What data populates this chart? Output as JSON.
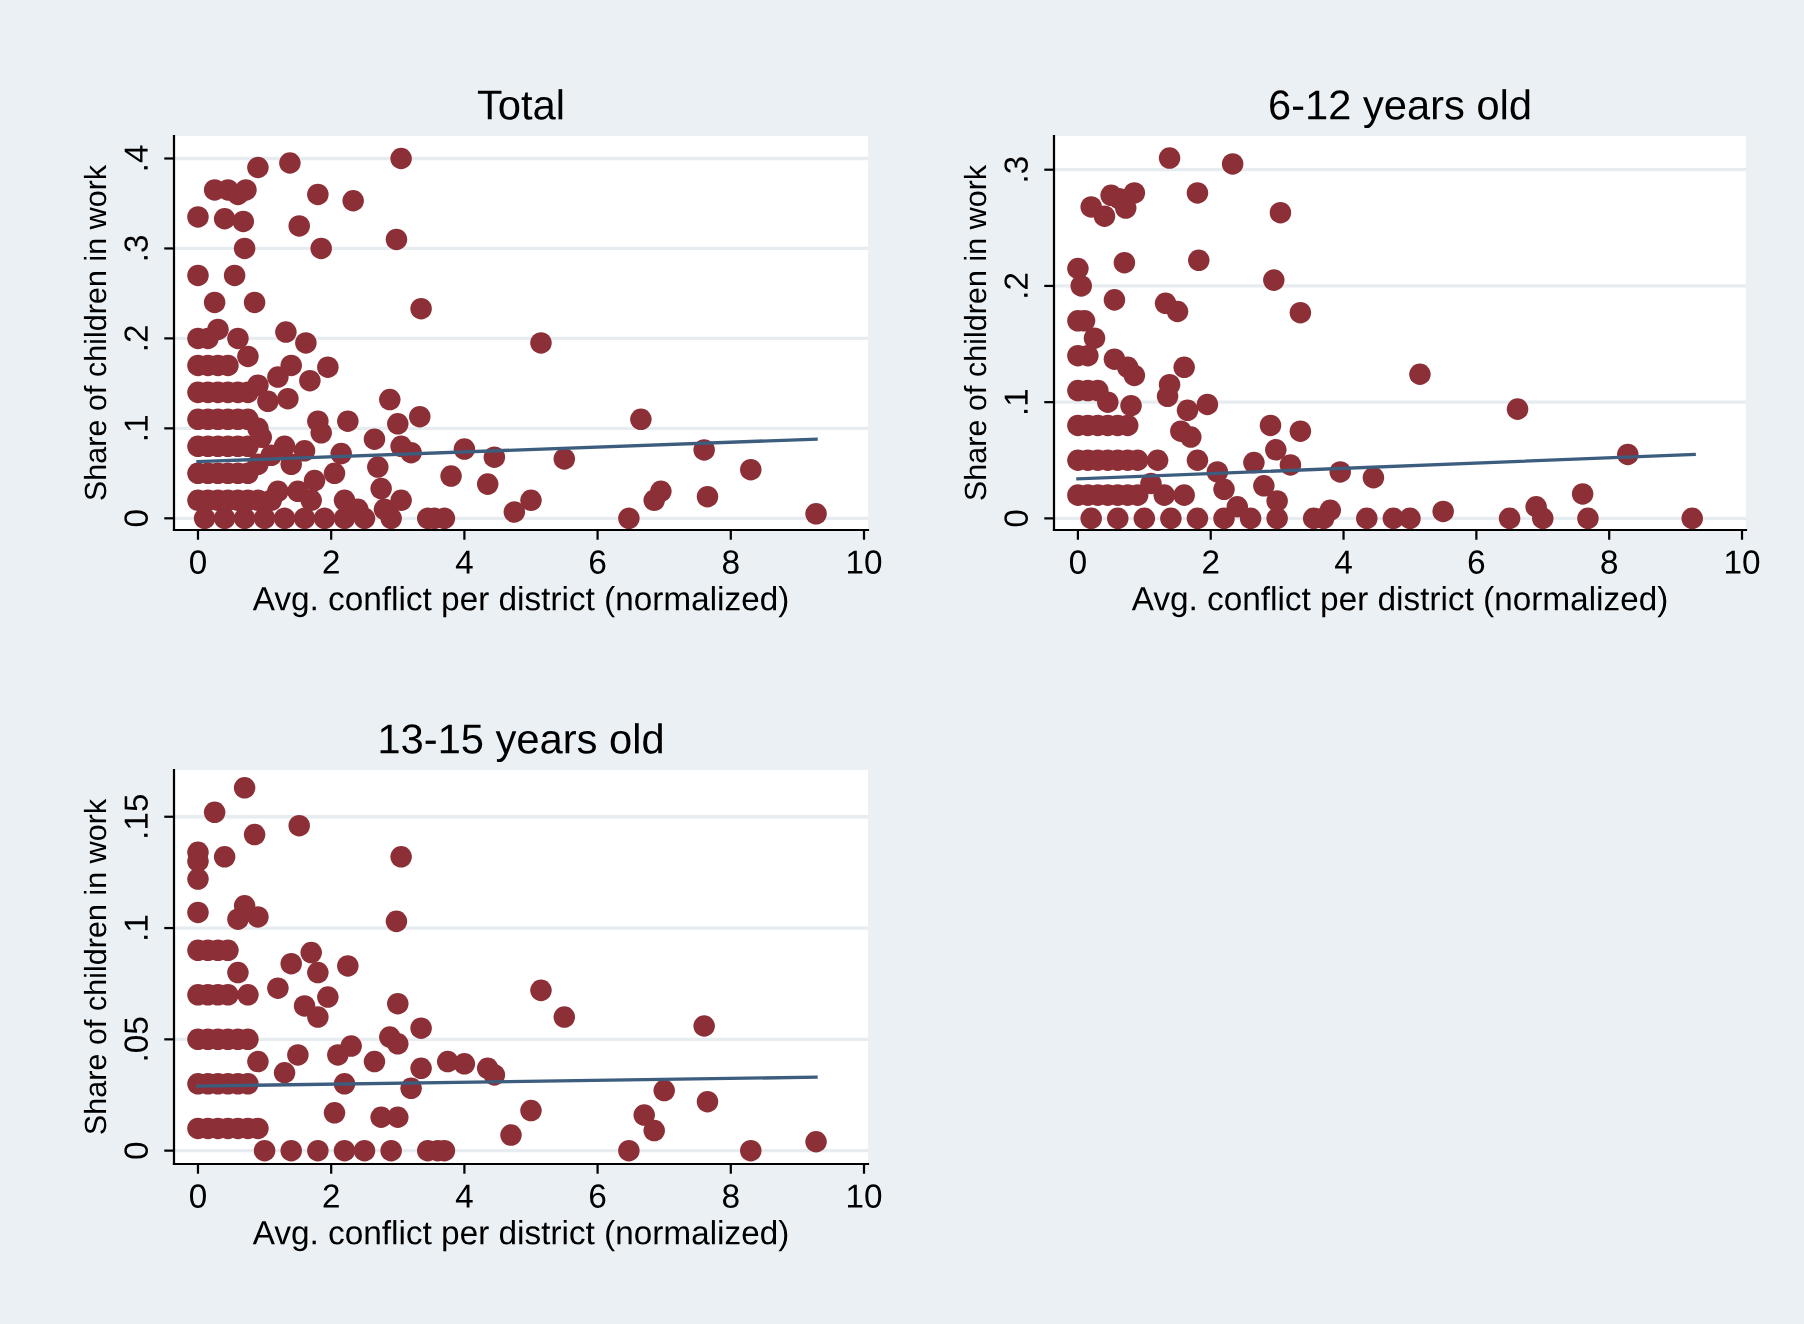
{
  "chart_data": [
    {
      "type": "scatter",
      "title": "Total",
      "xlabel": "Avg. conflict per district (normalized)",
      "ylabel": "Share of children in work",
      "xlim": [
        -0.36,
        10.06
      ],
      "ylim": [
        -0.013,
        0.425
      ],
      "xticks": [
        0,
        2,
        4,
        6,
        8,
        10
      ],
      "yticks": [
        {
          "value": 0,
          "label": "0"
        },
        {
          "value": 0.1,
          "label": ".1"
        },
        {
          "value": 0.2,
          "label": ".2"
        },
        {
          "value": 0.3,
          "label": ".3"
        },
        {
          "value": 0.4,
          "label": ".4"
        }
      ],
      "grid": "y",
      "marker": "circle",
      "series": [
        {
          "color": "#8c2f36",
          "x": [
            0,
            0.25,
            0.45,
            0.6,
            0.72,
            0.4,
            0.68,
            0.9,
            1.38,
            3.05,
            1.8,
            2.33,
            1.52,
            2.98,
            0.7,
            1.85,
            0,
            0.55,
            0.25,
            0.85,
            3.35,
            5.15,
            1.32,
            1.62,
            1.4,
            1.95,
            1.2,
            1.68,
            0.9,
            1.05,
            1.35,
            2.88,
            3.33,
            2.25,
            3.0,
            6.65,
            1.8,
            1.85,
            2.65,
            3.05,
            3.2,
            2.15,
            4.0,
            4.45,
            5.5,
            7.6,
            8.3,
            2.05,
            2.7,
            3.8,
            4.35,
            1.75,
            2.75,
            3.05,
            2.2,
            5.0,
            4.75,
            6.95,
            6.85,
            7.65,
            9.28,
            6.47,
            3.45,
            3.7,
            3.55,
            2.9,
            2.5,
            2.2,
            1.9,
            1.6,
            1.3,
            1.0,
            0.7,
            0.4,
            0.1,
            1.2,
            1.4,
            1.6,
            1.3,
            0.95,
            0,
            0,
            0,
            0,
            0,
            0,
            0,
            0.15,
            0.15,
            0.15,
            0.15,
            0.15,
            0.15,
            0.15,
            0.3,
            0.3,
            0.3,
            0.3,
            0.3,
            0.3,
            0.3,
            0.45,
            0.45,
            0.45,
            0.45,
            0.45,
            0.45,
            0.6,
            0.6,
            0.6,
            0.6,
            0.6,
            0.6,
            0.75,
            0.75,
            0.75,
            0.75,
            0.75,
            0.75,
            0.9,
            0.9,
            0.9,
            1.1,
            1.1,
            1.5,
            1.7,
            2.4,
            2.8
          ],
          "values": [
            0.335,
            0.365,
            0.365,
            0.36,
            0.365,
            0.333,
            0.33,
            0.39,
            0.395,
            0.4,
            0.36,
            0.353,
            0.325,
            0.31,
            0.3,
            0.3,
            0.27,
            0.27,
            0.24,
            0.24,
            0.233,
            0.195,
            0.207,
            0.195,
            0.17,
            0.168,
            0.157,
            0.153,
            0.148,
            0.13,
            0.133,
            0.132,
            0.113,
            0.108,
            0.105,
            0.11,
            0.108,
            0.095,
            0.088,
            0.08,
            0.073,
            0.072,
            0.077,
            0.068,
            0.066,
            0.076,
            0.054,
            0.05,
            0.057,
            0.047,
            0.038,
            0.042,
            0.033,
            0.02,
            0.02,
            0.02,
            0.007,
            0.03,
            0.02,
            0.024,
            0.005,
            0,
            0,
            0,
            0,
            0,
            0,
            0,
            0,
            0,
            0,
            0,
            0,
            0,
            0,
            0.03,
            0.06,
            0.075,
            0.08,
            0.09,
            0.02,
            0.05,
            0.08,
            0.11,
            0.14,
            0.17,
            0.2,
            0.02,
            0.05,
            0.08,
            0.11,
            0.14,
            0.17,
            0.2,
            0.02,
            0.05,
            0.08,
            0.11,
            0.14,
            0.17,
            0.21,
            0.02,
            0.05,
            0.08,
            0.11,
            0.14,
            0.17,
            0.02,
            0.05,
            0.08,
            0.11,
            0.14,
            0.2,
            0.02,
            0.05,
            0.08,
            0.11,
            0.14,
            0.18,
            0.02,
            0.06,
            0.1,
            0.02,
            0.07,
            0.03,
            0.02,
            0.01,
            0.01
          ]
        },
        {
          "type": "line",
          "color": "#3d5d7e",
          "x": [
            0,
            9.28
          ],
          "values": [
            0.063,
            0.088
          ],
          "marker": "none"
        }
      ]
    },
    {
      "type": "scatter",
      "title": "6-12 years old",
      "xlabel": "Avg. conflict per district (normalized)",
      "ylabel": "Share of children in work",
      "xlim": [
        -0.36,
        10.06
      ],
      "ylim": [
        -0.01,
        0.329
      ],
      "xticks": [
        0,
        2,
        4,
        6,
        8,
        10
      ],
      "yticks": [
        {
          "value": 0,
          "label": "0"
        },
        {
          "value": 0.1,
          "label": ".1"
        },
        {
          "value": 0.2,
          "label": ".2"
        },
        {
          "value": 0.3,
          "label": ".3"
        }
      ],
      "grid": "y",
      "marker": "circle",
      "series": [
        {
          "color": "#8c2f36",
          "x": [
            1.38,
            2.33,
            0.85,
            0.5,
            0.62,
            0.2,
            0.4,
            0.72,
            1.8,
            3.05,
            0.7,
            1.82,
            2.95,
            0,
            0.55,
            1.32,
            1.5,
            3.35,
            0.05,
            0.1,
            0.25,
            0.55,
            0.75,
            0.85,
            1.6,
            1.38,
            1.35,
            5.15,
            6.62,
            1.95,
            1.65,
            0.8,
            2.9,
            3.35,
            1.55,
            1.7,
            2.98,
            3.2,
            2.65,
            3.95,
            4.45,
            8.28,
            2.1,
            2.2,
            2.8,
            3.0,
            1.2,
            1.8,
            7.6,
            6.9,
            7.0,
            7.68,
            9.25,
            6.5,
            5.5,
            5.0,
            4.75,
            4.35,
            3.8,
            3.55,
            3.7,
            3.0,
            2.6,
            2.2,
            1.8,
            1.4,
            1.0,
            0.6,
            0.2,
            0,
            0,
            0,
            0,
            0,
            0,
            0.15,
            0.15,
            0.15,
            0.15,
            0.15,
            0.3,
            0.3,
            0.3,
            0.3,
            0.45,
            0.45,
            0.45,
            0.45,
            0.6,
            0.6,
            0.6,
            0.75,
            0.75,
            0.75,
            0.9,
            0.9,
            1.1,
            1.3,
            1.6,
            2.4
          ],
          "values": [
            0.31,
            0.305,
            0.28,
            0.278,
            0.275,
            0.268,
            0.26,
            0.267,
            0.28,
            0.263,
            0.22,
            0.222,
            0.205,
            0.215,
            0.188,
            0.185,
            0.178,
            0.177,
            0.2,
            0.17,
            0.155,
            0.137,
            0.13,
            0.123,
            0.13,
            0.115,
            0.105,
            0.124,
            0.094,
            0.098,
            0.093,
            0.097,
            0.08,
            0.075,
            0.075,
            0.07,
            0.059,
            0.046,
            0.048,
            0.04,
            0.035,
            0.055,
            0.04,
            0.025,
            0.028,
            0.015,
            0.05,
            0.05,
            0.021,
            0.01,
            0,
            0,
            0,
            0,
            0.006,
            0,
            0,
            0,
            0.007,
            0,
            0,
            0,
            0,
            0,
            0,
            0,
            0,
            0,
            0,
            0.02,
            0.05,
            0.08,
            0.11,
            0.14,
            0.17,
            0.02,
            0.05,
            0.08,
            0.11,
            0.14,
            0.02,
            0.05,
            0.08,
            0.11,
            0.02,
            0.05,
            0.08,
            0.1,
            0.02,
            0.05,
            0.08,
            0.02,
            0.05,
            0.08,
            0.02,
            0.05,
            0.03,
            0.02,
            0.02,
            0.01
          ]
        },
        {
          "type": "line",
          "color": "#3d5d7e",
          "x": [
            0,
            9.28
          ],
          "values": [
            0.034,
            0.055
          ],
          "marker": "none"
        }
      ]
    },
    {
      "type": "scatter",
      "title": "13-15 years old",
      "xlabel": "Avg. conflict per district (normalized)",
      "ylabel": "Share of children in work",
      "xlim": [
        -0.36,
        10.06
      ],
      "ylim": [
        -0.006,
        0.171
      ],
      "xticks": [
        0,
        2,
        4,
        6,
        8,
        10
      ],
      "yticks": [
        {
          "value": 0,
          "label": "0"
        },
        {
          "value": 0.05,
          "label": ".05"
        },
        {
          "value": 0.1,
          "label": ".1"
        },
        {
          "value": 0.15,
          "label": ".15"
        }
      ],
      "grid": "y",
      "marker": "circle",
      "series": [
        {
          "color": "#8c2f36",
          "x": [
            0.7,
            0.25,
            1.52,
            0.85,
            0,
            0,
            0.4,
            3.05,
            0,
            0,
            0.7,
            0.9,
            0.6,
            2.98,
            1.7,
            1.4,
            2.25,
            1.8,
            1.95,
            1.2,
            1.6,
            3.0,
            1.8,
            5.15,
            5.5,
            7.6,
            3.35,
            2.88,
            3.0,
            2.3,
            2.1,
            1.5,
            2.65,
            3.75,
            4.0,
            4.35,
            4.45,
            3.35,
            1.3,
            3.2,
            2.2,
            7.0,
            7.65,
            6.7,
            6.85,
            5.0,
            4.7,
            2.75,
            2.05,
            3.0,
            6.47,
            8.3,
            9.28,
            3.45,
            3.6,
            3.7,
            2.9,
            2.5,
            2.2,
            1.8,
            1.4,
            1.0,
            0.15,
            0.15,
            0.15,
            0.15,
            0.15,
            0.3,
            0.3,
            0.3,
            0.3,
            0.3,
            0.45,
            0.45,
            0.45,
            0.45,
            0.45,
            0.6,
            0.6,
            0.6,
            0.6,
            0.75,
            0.75,
            0.75,
            0.75,
            0.9,
            0.9,
            0,
            0,
            0,
            0,
            0
          ],
          "values": [
            0.163,
            0.152,
            0.146,
            0.142,
            0.134,
            0.13,
            0.132,
            0.132,
            0.122,
            0.107,
            0.11,
            0.105,
            0.104,
            0.103,
            0.089,
            0.084,
            0.083,
            0.08,
            0.069,
            0.073,
            0.065,
            0.066,
            0.06,
            0.072,
            0.06,
            0.056,
            0.055,
            0.051,
            0.048,
            0.047,
            0.043,
            0.043,
            0.04,
            0.04,
            0.039,
            0.037,
            0.034,
            0.037,
            0.035,
            0.028,
            0.03,
            0.027,
            0.022,
            0.016,
            0.009,
            0.018,
            0.007,
            0.015,
            0.017,
            0.015,
            0,
            0,
            0.004,
            0,
            0,
            0,
            0,
            0,
            0,
            0,
            0,
            0,
            0.01,
            0.03,
            0.05,
            0.07,
            0.09,
            0.01,
            0.03,
            0.05,
            0.07,
            0.09,
            0.01,
            0.03,
            0.05,
            0.07,
            0.09,
            0.01,
            0.03,
            0.05,
            0.08,
            0.01,
            0.03,
            0.05,
            0.07,
            0.01,
            0.04,
            0.01,
            0.03,
            0.05,
            0.07,
            0.09
          ]
        },
        {
          "type": "line",
          "color": "#3d5d7e",
          "x": [
            0,
            9.28
          ],
          "values": [
            0.029,
            0.033
          ],
          "marker": "none"
        }
      ]
    }
  ]
}
